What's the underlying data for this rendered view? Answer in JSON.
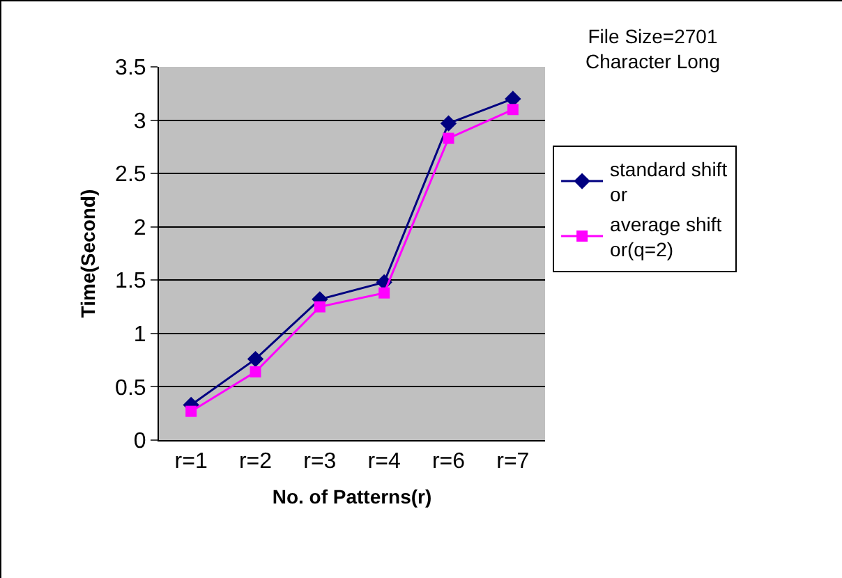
{
  "chart_data": {
    "type": "line",
    "xlabel": "No. of Patterns(r)",
    "ylabel": "Time(Second)",
    "categories": [
      "r=1",
      "r=2",
      "r=3",
      "r=4",
      "r=6",
      "r=7"
    ],
    "series": [
      {
        "name": "standard shift or",
        "color": "#000080",
        "marker": "diamond",
        "values": [
          0.33,
          0.76,
          1.32,
          1.48,
          2.97,
          3.2
        ]
      },
      {
        "name": "average shift or(q=2)",
        "color": "#ff00ff",
        "marker": "square",
        "values": [
          0.27,
          0.64,
          1.25,
          1.38,
          2.83,
          3.1
        ]
      }
    ],
    "ylim": [
      0,
      3.5
    ],
    "yticks": [
      0,
      0.5,
      1,
      1.5,
      2,
      2.5,
      3,
      3.5
    ],
    "grid": "y",
    "legend": "right",
    "line_style": "solid",
    "annotations": [
      "File Size=2701 Character Long"
    ]
  }
}
